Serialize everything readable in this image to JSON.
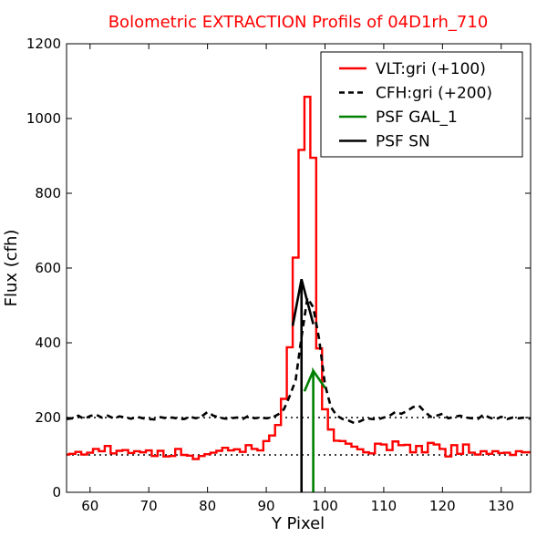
{
  "chart_data": {
    "type": "line",
    "title": "Bolometric EXTRACTION Profils of 04D1rh_710",
    "xlabel": "Y Pixel",
    "ylabel": "Flux (cfh)",
    "xlim": [
      56,
      135
    ],
    "ylim": [
      0,
      1200
    ],
    "xticks": [
      60,
      70,
      80,
      90,
      100,
      110,
      120,
      130
    ],
    "yticks": [
      0,
      200,
      400,
      600,
      800,
      1000,
      1200
    ],
    "grid": false,
    "legend_position": "top-right",
    "reference_lines": [
      {
        "y": 100,
        "style": "dotted",
        "color": "#000000"
      },
      {
        "y": 200,
        "style": "dotted",
        "color": "#000000"
      }
    ],
    "series": [
      {
        "name": "VLT:gri (+100)",
        "color": "#ff0000",
        "style": "steps",
        "x": [
          56,
          57,
          58,
          59,
          60,
          61,
          62,
          63,
          64,
          65,
          66,
          67,
          68,
          69,
          70,
          71,
          72,
          73,
          74,
          75,
          76,
          77,
          78,
          79,
          80,
          81,
          82,
          83,
          84,
          85,
          86,
          87,
          88,
          89,
          90,
          91,
          92,
          93,
          94,
          95,
          96,
          97,
          98,
          99,
          100,
          101,
          102,
          103,
          104,
          105,
          106,
          107,
          108,
          109,
          110,
          111,
          112,
          113,
          114,
          115,
          116,
          117,
          118,
          119,
          120,
          121,
          122,
          123,
          124,
          125,
          126,
          127,
          128,
          129,
          130,
          131,
          132,
          133,
          134,
          135
        ],
        "values": [
          101,
          103,
          108,
          101,
          106,
          116,
          110,
          124,
          104,
          111,
          113,
          105,
          110,
          107,
          112,
          97,
          111,
          96,
          97,
          116,
          100,
          98,
          89,
          97,
          102,
          106,
          111,
          119,
          112,
          115,
          108,
          126,
          116,
          112,
          137,
          152,
          180,
          250,
          388,
          628,
          916,
          1058,
          895,
          385,
          222,
          168,
          138,
          137,
          130,
          122,
          115,
          107,
          104,
          130,
          128,
          113,
          136,
          126,
          127,
          107,
          124,
          107,
          132,
          128,
          116,
          96,
          126,
          103,
          128,
          106,
          101,
          110,
          103,
          110,
          105,
          106,
          100,
          110,
          107,
          107
        ]
      },
      {
        "name": "CFH:gri (+200)",
        "color": "#000000",
        "style": "dashed",
        "x": [
          56,
          57,
          58,
          59,
          60,
          61,
          62,
          63,
          64,
          65,
          66,
          67,
          68,
          69,
          70,
          71,
          72,
          73,
          74,
          75,
          76,
          77,
          78,
          79,
          80,
          81,
          82,
          83,
          84,
          85,
          86,
          87,
          88,
          89,
          90,
          91,
          92,
          93,
          94,
          95,
          96,
          97,
          98,
          99,
          100,
          101,
          102,
          103,
          104,
          105,
          106,
          107,
          108,
          109,
          110,
          111,
          112,
          113,
          114,
          115,
          116,
          117,
          118,
          119,
          120,
          121,
          122,
          123,
          124,
          125,
          126,
          127,
          128,
          129,
          130,
          131,
          132,
          133,
          134,
          135
        ],
        "values": [
          196,
          198,
          205,
          196,
          204,
          208,
          200,
          205,
          198,
          203,
          200,
          197,
          202,
          198,
          196,
          195,
          201,
          198,
          200,
          197,
          196,
          202,
          198,
          203,
          215,
          205,
          200,
          197,
          198,
          200,
          196,
          205,
          198,
          200,
          198,
          200,
          208,
          222,
          258,
          300,
          415,
          520,
          495,
          410,
          288,
          228,
          205,
          196,
          192,
          185,
          190,
          198,
          196,
          195,
          200,
          205,
          215,
          210,
          218,
          228,
          232,
          215,
          202,
          205,
          210,
          198,
          202,
          205,
          200,
          198,
          196,
          208,
          200,
          195,
          202,
          196,
          200,
          198,
          200,
          197
        ]
      },
      {
        "name": "PSF GAL_1",
        "color": "#008000",
        "style": "solid",
        "x": [
          96.5,
          98,
          98,
          98,
          100
        ],
        "values": [
          270,
          325,
          0,
          325,
          280
        ]
      },
      {
        "name": "PSF SN",
        "color": "#000000",
        "style": "solid",
        "x": [
          94.5,
          96,
          96,
          96,
          98
        ],
        "values": [
          445,
          570,
          0,
          570,
          450
        ]
      }
    ]
  }
}
